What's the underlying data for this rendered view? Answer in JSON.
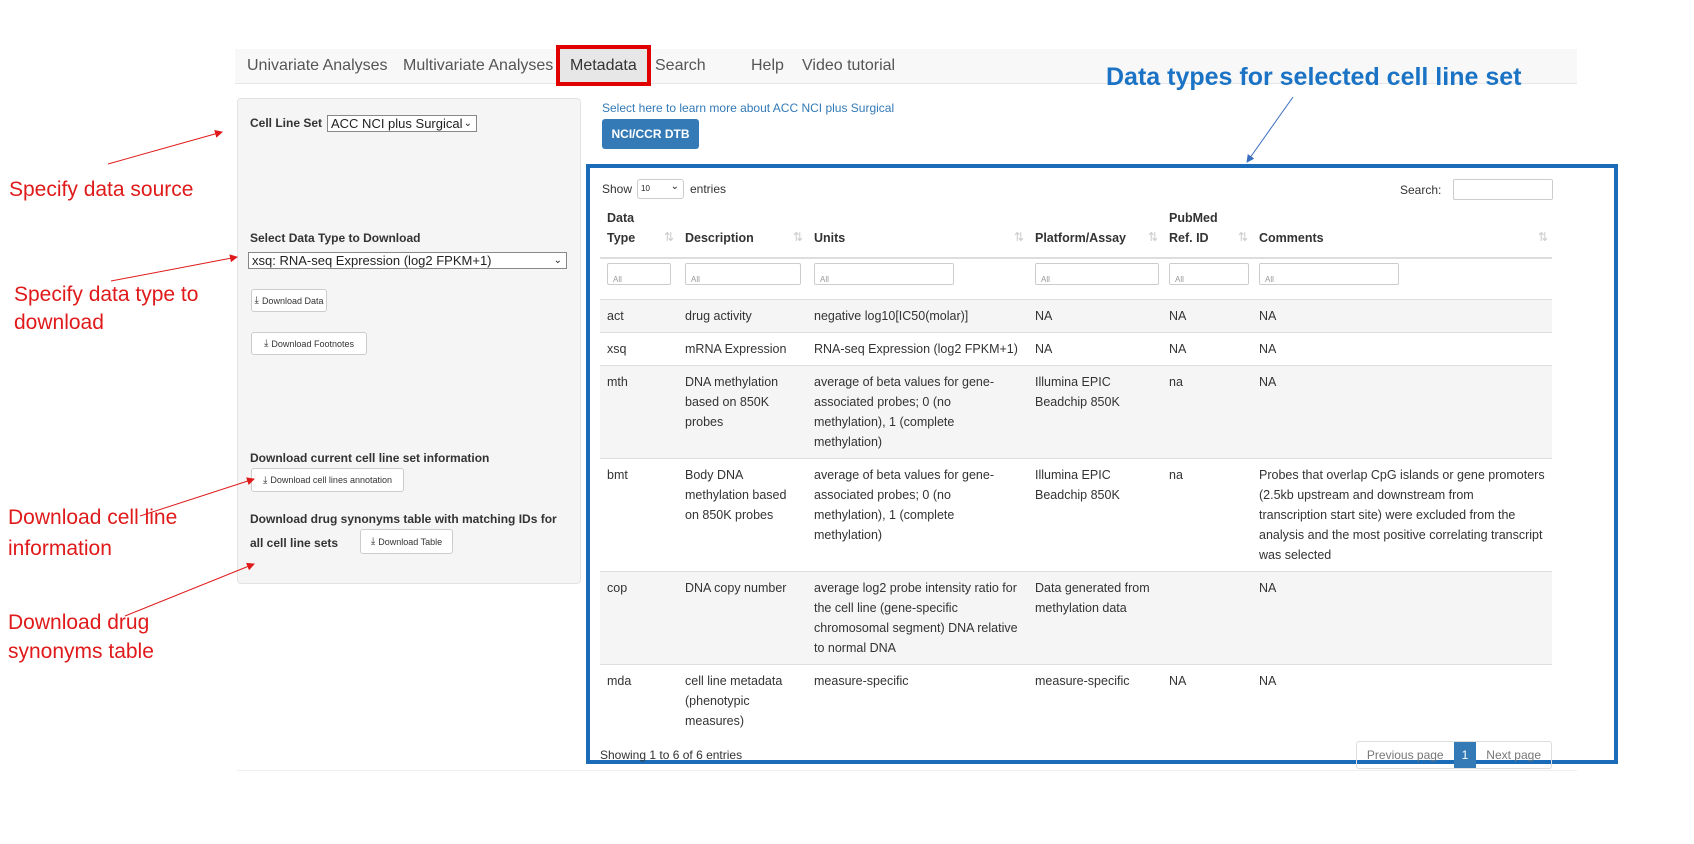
{
  "nav": {
    "items": [
      "Univariate Analyses",
      "Multivariate Analyses",
      "Metadata",
      "Search",
      "Help",
      "Video tutorial"
    ],
    "active": "Metadata"
  },
  "sidebar": {
    "cell_line_set_label": "Cell Line Set",
    "cell_line_set_value": "ACC NCI plus Surgical",
    "data_type_label": "Select Data Type to Download",
    "data_type_value": "xsq: RNA-seq Expression (log2 FPKM+1)",
    "download_data": "Download Data",
    "download_footnotes": "Download Footnotes",
    "cell_line_info_label": "Download current cell line set information",
    "download_annotation": "Download cell lines annotation",
    "drug_syn_label_1": "Download drug synonyms table with matching IDs for",
    "drug_syn_label_2": "all cell line sets",
    "download_table": "Download Table"
  },
  "main": {
    "learn_link": "Select here to learn more about ACC NCI plus Surgical",
    "dtb_button": "NCI/CCR DTB"
  },
  "table": {
    "show_label": "Show",
    "entries_value": "10",
    "entries_label": "entries",
    "search_label": "Search:",
    "search_value": "",
    "headers": [
      "Data Type",
      "Description",
      "Units",
      "Platform/Assay",
      "PubMed Ref. ID",
      "Comments"
    ],
    "filter_placeholder": "All",
    "rows": [
      [
        "act",
        "drug activity",
        "negative log10[IC50(molar)]",
        "NA",
        "NA",
        "NA"
      ],
      [
        "xsq",
        "mRNA Expression",
        "RNA-seq Expression (log2 FPKM+1)",
        "NA",
        "NA",
        "NA"
      ],
      [
        "mth",
        "DNA methylation based on 850K probes",
        "average of beta values for gene-associated probes; 0 (no methylation), 1 (complete methylation)",
        "Illumina EPIC Beadchip 850K",
        "na",
        "NA"
      ],
      [
        "bmt",
        "Body DNA methylation based on 850K probes",
        "average of beta values for gene-associated probes; 0 (no methylation), 1 (complete methylation)",
        "Illumina EPIC Beadchip 850K",
        "na",
        "Probes that overlap CpG islands or gene promoters (2.5kb upstream and downstream from transcription start site) were excluded from the analysis and the most positive correlating transcript was selected"
      ],
      [
        "cop",
        "DNA copy number",
        "average log2 probe intensity ratio for the cell line (gene-specific chromosomal segment) DNA relative to normal DNA",
        "Data generated from methylation data",
        "",
        "NA"
      ],
      [
        "mda",
        "cell line metadata (phenotypic measures)",
        "measure-specific",
        "measure-specific",
        "NA",
        "NA"
      ]
    ],
    "info": "Showing 1 to 6 of 6 entries",
    "pager": {
      "prev": "Previous page",
      "current": "1",
      "next": "Next page"
    }
  },
  "annotations": {
    "title": "Data types for selected cell line set",
    "data_source": "Specify data source",
    "data_type_1": "Specify data type to",
    "data_type_2": "download",
    "cell_line_1": "Download cell line",
    "cell_line_2": "information",
    "drug_1": "Download drug",
    "drug_2": "synonyms table"
  },
  "colors": {
    "annotation_red": "#e01a1a",
    "highlight_blue": "#1a6cb8",
    "primary": "#337ab7"
  }
}
